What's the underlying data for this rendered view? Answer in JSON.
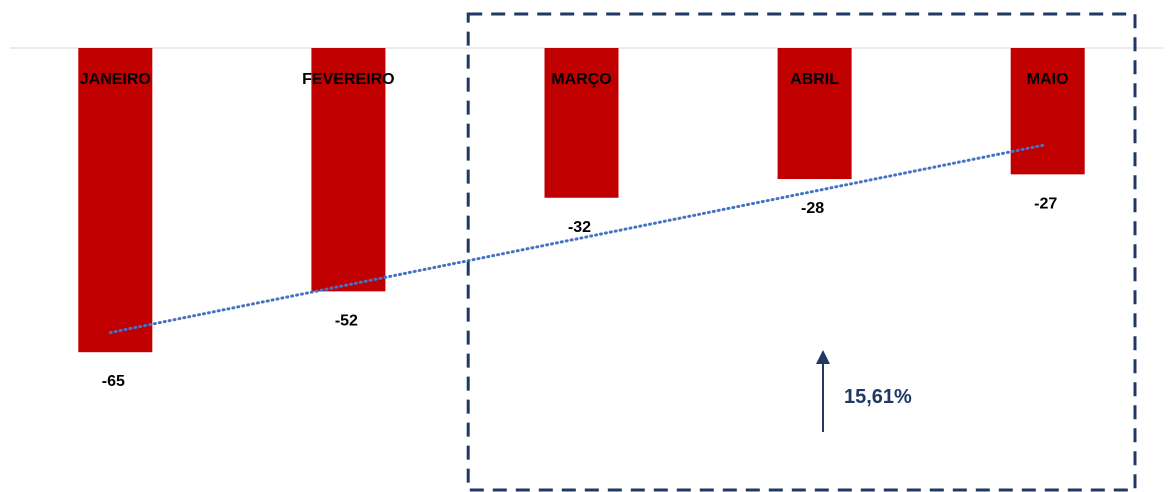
{
  "chart_data": {
    "type": "bar",
    "categories": [
      "JANEIRO",
      "FEVEREIRO",
      "MARÇO",
      "ABRIL",
      "MAIO"
    ],
    "values": [
      -65,
      -52,
      -32,
      -28,
      -27
    ],
    "value_labels": [
      "-65",
      "-52",
      "-32",
      "-28",
      "-27"
    ],
    "ylim": [
      -100,
      0
    ],
    "trendline": {
      "style": "dotted",
      "kind": "linear"
    },
    "highlight": {
      "categories": [
        "MARÇO",
        "ABRIL",
        "MAIO"
      ],
      "style": "dashed-box"
    },
    "annotation": {
      "text": "15,61%",
      "arrow": "up"
    },
    "grid": false,
    "legend": "none",
    "colors": {
      "bar": "#C00000",
      "trendline": "#4472C4",
      "highlight_box": "#1F3864",
      "annotation": "#1F3864",
      "axis": "#D9D9D9"
    }
  }
}
